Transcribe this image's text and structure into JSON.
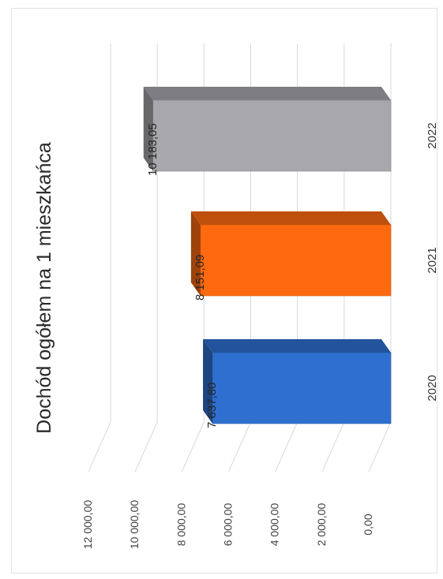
{
  "chart_data": {
    "type": "bar",
    "title": "Dochód ogółem na 1 mieszkańca",
    "categories": [
      "2020",
      "2021",
      "2022"
    ],
    "values": [
      7637.8,
      8151.09,
      10183.05
    ],
    "value_labels": [
      "7 637,80",
      "8 151,09",
      "10 183,05"
    ],
    "ylim": [
      0,
      12000
    ],
    "yticks": [
      0,
      2000,
      4000,
      6000,
      8000,
      10000,
      12000
    ],
    "ytick_labels": [
      "0,00",
      "2 000,00",
      "4 000,00",
      "6 000,00",
      "8 000,00",
      "10 000,00",
      "12 000,00"
    ],
    "grid": true,
    "three_d": true,
    "orientation": "rotated 90° counter-clockwise (scanned page)",
    "bar_colors": [
      "#2f6fd0",
      "#ff6a10",
      "#a8a7ad"
    ]
  }
}
